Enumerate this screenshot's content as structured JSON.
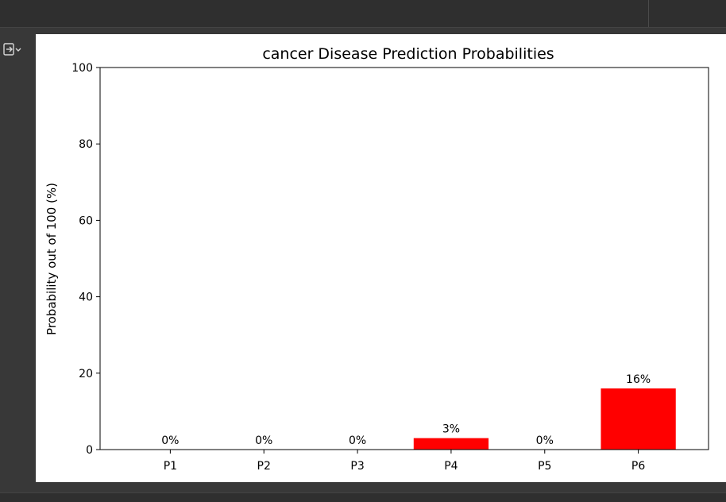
{
  "colors": {
    "bar": "#ff0000",
    "panel_bg": "#ffffff",
    "ide_bg": "#383838"
  },
  "gutter": {
    "icon": "output-collapse-icon"
  },
  "chart_data": {
    "type": "bar",
    "title": "cancer Disease Prediction Probabilities",
    "xlabel": "",
    "ylabel": "Probability out of 100 (%)",
    "categories": [
      "P1",
      "P2",
      "P3",
      "P4",
      "P5",
      "P6"
    ],
    "values": [
      0,
      0,
      0,
      3,
      0,
      16
    ],
    "value_labels": [
      "0%",
      "0%",
      "0%",
      "3%",
      "0%",
      "16%"
    ],
    "ylim": [
      0,
      100
    ],
    "yticks": [
      0,
      20,
      40,
      60,
      80,
      100
    ],
    "ytick_labels": [
      "0",
      "20",
      "40",
      "60",
      "80",
      "100"
    ],
    "grid": false,
    "bar_color": "#ff0000"
  }
}
